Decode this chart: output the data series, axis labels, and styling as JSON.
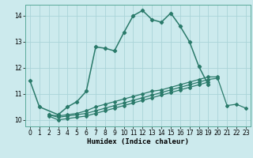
{
  "xlabel": "Humidex (Indice chaleur)",
  "bg_color": "#cceaed",
  "grid_color": "#aad4d8",
  "line_color": "#2a7a6a",
  "x": [
    0,
    1,
    2,
    3,
    4,
    5,
    6,
    7,
    8,
    9,
    10,
    11,
    12,
    13,
    14,
    15,
    16,
    17,
    18,
    19,
    20,
    21,
    22,
    23
  ],
  "series1": [
    11.5,
    10.5,
    null,
    10.2,
    10.5,
    10.7,
    11.1,
    12.8,
    12.75,
    12.65,
    13.35,
    14.0,
    14.2,
    13.85,
    13.75,
    14.1,
    13.6,
    13.0,
    12.05,
    11.35,
    null,
    null,
    null,
    null
  ],
  "series2": [
    null,
    null,
    10.2,
    10.15,
    10.2,
    10.25,
    10.35,
    10.5,
    10.6,
    10.7,
    10.8,
    10.9,
    11.0,
    11.1,
    11.15,
    11.25,
    11.35,
    11.45,
    11.55,
    11.65,
    11.65,
    null,
    null,
    null
  ],
  "series3": [
    null,
    null,
    10.2,
    10.1,
    10.15,
    10.2,
    10.25,
    10.35,
    10.45,
    10.55,
    10.65,
    10.75,
    10.85,
    10.95,
    11.05,
    11.15,
    11.25,
    11.35,
    11.45,
    11.55,
    11.6,
    10.55,
    10.6,
    10.45
  ],
  "series4": [
    null,
    null,
    10.15,
    10.0,
    10.05,
    10.1,
    10.15,
    10.25,
    10.35,
    10.45,
    10.55,
    10.65,
    10.75,
    10.85,
    10.95,
    11.05,
    11.15,
    11.25,
    11.35,
    11.45,
    null,
    null,
    null,
    null
  ],
  "ylim": [
    9.75,
    14.42
  ],
  "xlim": [
    -0.5,
    23.5
  ],
  "yticks": [
    10,
    11,
    12,
    13,
    14
  ],
  "xticks": [
    0,
    1,
    2,
    3,
    4,
    5,
    6,
    7,
    8,
    9,
    10,
    11,
    12,
    13,
    14,
    15,
    16,
    17,
    18,
    19,
    20,
    21,
    22,
    23
  ]
}
